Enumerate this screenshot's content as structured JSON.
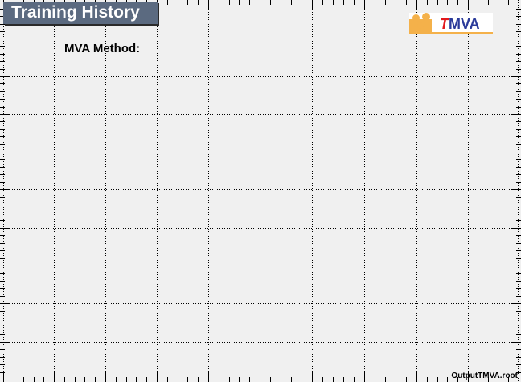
{
  "window": {
    "title": "Training History"
  },
  "plot": {
    "method_label": "MVA Method:"
  },
  "logo": {
    "t": "T",
    "mva": "MVA"
  },
  "footer": {
    "filename": "OutputTMVA.root"
  },
  "colors": {
    "background": "#f0f0f0",
    "title_box": "#5b6a80",
    "logo_orange": "#f4b14a",
    "logo_red": "#e2191c",
    "logo_blue": "#2a3a9a"
  }
}
